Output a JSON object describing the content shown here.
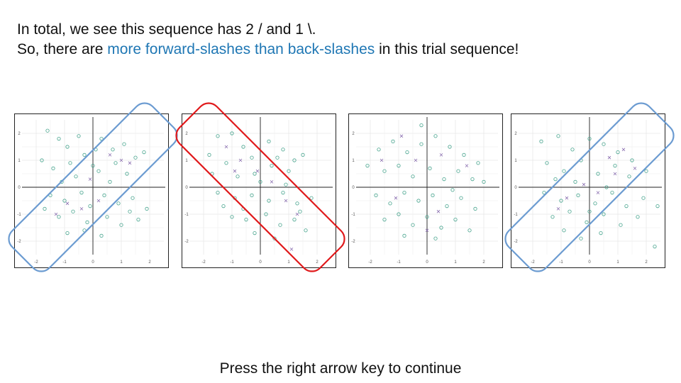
{
  "text": {
    "line1": "In total, we see this sequence has 2 / and 1 \\.",
    "line2_prefix": "So, there are ",
    "line2_highlight": "more forward-slashes than back-slashes",
    "line2_suffix": " in this trial sequence!",
    "footer": "Press the right arrow key to continue"
  },
  "colors": {
    "highlight_text": "#1f77b4",
    "forward_box": "#6b9bd1",
    "back_box": "#e0191b",
    "circle_points": "#45a38c",
    "cross_points": "#8a6fb0",
    "axis": "#222222",
    "grid": "#e8e8e8"
  },
  "chart_data": [
    {
      "type": "scatter",
      "panel": 1,
      "annotation": "forward-slash",
      "xlim": [
        -2.5,
        2.5
      ],
      "ylim": [
        -2.5,
        2.5
      ],
      "xticks": [
        "-2",
        "-1",
        "0",
        "1",
        "2"
      ],
      "yticks": [
        "2",
        "1",
        "0",
        "-1",
        "-2"
      ],
      "grid": true,
      "series": [
        {
          "marker": "circle",
          "points": [
            [
              -1.6,
              2.1
            ],
            [
              -1.2,
              1.8
            ],
            [
              -0.9,
              1.5
            ],
            [
              -0.5,
              1.9
            ],
            [
              -1.8,
              1.0
            ],
            [
              -1.4,
              0.7
            ],
            [
              -0.8,
              0.9
            ],
            [
              -0.3,
              1.2
            ],
            [
              0.3,
              1.8
            ],
            [
              0.7,
              1.4
            ],
            [
              1.1,
              1.6
            ],
            [
              1.5,
              1.1
            ],
            [
              -0.6,
              0.4
            ],
            [
              0.2,
              0.6
            ],
            [
              0.8,
              0.9
            ],
            [
              1.2,
              0.5
            ],
            [
              1.8,
              1.3
            ],
            [
              -1.5,
              -0.3
            ],
            [
              -1.0,
              -0.5
            ],
            [
              -0.4,
              -0.2
            ],
            [
              0.4,
              -0.3
            ],
            [
              0.9,
              -0.6
            ],
            [
              1.4,
              -0.4
            ],
            [
              1.9,
              -0.8
            ],
            [
              -1.2,
              -1.1
            ],
            [
              -0.7,
              -0.9
            ],
            [
              -0.2,
              -1.3
            ],
            [
              0.5,
              -1.1
            ],
            [
              1.0,
              -1.4
            ],
            [
              1.6,
              -1.2
            ],
            [
              -0.9,
              -1.7
            ],
            [
              -0.3,
              -1.6
            ],
            [
              0.3,
              -1.8
            ],
            [
              -1.7,
              -0.8
            ],
            [
              0.1,
              1.4
            ],
            [
              0.6,
              0.2
            ],
            [
              -0.1,
              -0.7
            ],
            [
              1.3,
              -0.9
            ],
            [
              -1.1,
              0.2
            ],
            [
              0.0,
              0.8
            ]
          ]
        },
        {
          "marker": "cross",
          "points": [
            [
              0.6,
              1.2
            ],
            [
              1.0,
              1.0
            ],
            [
              -0.4,
              -0.8
            ],
            [
              -0.9,
              -0.6
            ],
            [
              0.2,
              -0.5
            ],
            [
              1.3,
              0.9
            ],
            [
              -1.3,
              -1.0
            ],
            [
              -0.1,
              0.3
            ]
          ]
        }
      ]
    },
    {
      "type": "scatter",
      "panel": 2,
      "annotation": "back-slash",
      "xlim": [
        -2.5,
        2.5
      ],
      "ylim": [
        -2.5,
        2.5
      ],
      "xticks": [
        "-2",
        "-1",
        "0",
        "1",
        "2"
      ],
      "yticks": [
        "2",
        "1",
        "0",
        "-1",
        "-2"
      ],
      "grid": true,
      "series": [
        {
          "marker": "circle",
          "points": [
            [
              -1.5,
              1.9
            ],
            [
              -1.0,
              2.0
            ],
            [
              -0.6,
              1.5
            ],
            [
              -1.8,
              1.2
            ],
            [
              -1.2,
              0.9
            ],
            [
              -0.3,
              1.1
            ],
            [
              0.3,
              1.7
            ],
            [
              0.8,
              1.4
            ],
            [
              1.2,
              1.0
            ],
            [
              -0.8,
              0.4
            ],
            [
              -0.2,
              0.5
            ],
            [
              0.4,
              0.8
            ],
            [
              1.0,
              0.6
            ],
            [
              1.5,
              1.2
            ],
            [
              -1.5,
              -0.2
            ],
            [
              -0.9,
              -0.4
            ],
            [
              -0.3,
              -0.3
            ],
            [
              0.3,
              -0.5
            ],
            [
              0.8,
              -0.2
            ],
            [
              1.3,
              -0.6
            ],
            [
              1.8,
              -0.4
            ],
            [
              -1.0,
              -1.1
            ],
            [
              -0.5,
              -1.2
            ],
            [
              0.2,
              -1.0
            ],
            [
              0.7,
              -1.4
            ],
            [
              1.2,
              -1.2
            ],
            [
              1.6,
              -1.6
            ],
            [
              -0.2,
              -1.7
            ],
            [
              0.5,
              -1.9
            ],
            [
              -1.3,
              -0.7
            ],
            [
              0.0,
              0.2
            ],
            [
              0.9,
              0.1
            ],
            [
              -0.6,
              -0.8
            ],
            [
              1.4,
              -0.9
            ],
            [
              -1.7,
              0.5
            ],
            [
              0.6,
              1.1
            ]
          ]
        },
        {
          "marker": "cross",
          "points": [
            [
              -1.2,
              1.5
            ],
            [
              -0.7,
              1.0
            ],
            [
              -0.1,
              0.6
            ],
            [
              0.4,
              0.2
            ],
            [
              0.9,
              -0.5
            ],
            [
              1.3,
              -1.0
            ],
            [
              -0.9,
              0.6
            ],
            [
              1.1,
              -2.3
            ]
          ]
        }
      ]
    },
    {
      "type": "scatter",
      "panel": 3,
      "annotation": "none",
      "xlim": [
        -2.5,
        2.5
      ],
      "ylim": [
        -2.5,
        2.5
      ],
      "xticks": [
        "-2",
        "-1",
        "0",
        "1",
        "2"
      ],
      "yticks": [
        "2",
        "1",
        "0",
        "-1",
        "-2"
      ],
      "grid": true,
      "series": [
        {
          "marker": "circle",
          "points": [
            [
              -1.7,
              1.4
            ],
            [
              -1.2,
              1.7
            ],
            [
              -0.7,
              1.3
            ],
            [
              -0.2,
              1.6
            ],
            [
              0.3,
              1.9
            ],
            [
              0.8,
              1.5
            ],
            [
              1.3,
              1.2
            ],
            [
              1.8,
              0.9
            ],
            [
              -1.5,
              0.6
            ],
            [
              -1.0,
              0.8
            ],
            [
              -0.5,
              0.4
            ],
            [
              0.1,
              0.7
            ],
            [
              0.6,
              0.3
            ],
            [
              1.1,
              0.6
            ],
            [
              1.6,
              0.3
            ],
            [
              -1.8,
              -0.3
            ],
            [
              -1.3,
              -0.6
            ],
            [
              -0.8,
              -0.2
            ],
            [
              -0.3,
              -0.5
            ],
            [
              0.2,
              -0.3
            ],
            [
              0.7,
              -0.7
            ],
            [
              1.2,
              -0.4
            ],
            [
              1.7,
              -0.8
            ],
            [
              -1.5,
              -1.2
            ],
            [
              -1.0,
              -1.0
            ],
            [
              -0.5,
              -1.4
            ],
            [
              0.0,
              -1.1
            ],
            [
              0.5,
              -1.5
            ],
            [
              1.0,
              -1.2
            ],
            [
              1.5,
              -1.6
            ],
            [
              -0.8,
              -1.8
            ],
            [
              0.3,
              -1.9
            ],
            [
              -0.2,
              2.3
            ],
            [
              2.0,
              0.2
            ],
            [
              -2.1,
              0.8
            ],
            [
              0.9,
              -0.1
            ]
          ]
        },
        {
          "marker": "cross",
          "points": [
            [
              -0.4,
              1.0
            ],
            [
              0.5,
              1.2
            ],
            [
              -1.1,
              -0.4
            ],
            [
              0.4,
              -0.9
            ],
            [
              1.4,
              0.8
            ],
            [
              -0.9,
              1.9
            ],
            [
              0.0,
              -1.6
            ],
            [
              -1.6,
              1.0
            ]
          ]
        }
      ]
    },
    {
      "type": "scatter",
      "panel": 4,
      "annotation": "forward-slash",
      "xlim": [
        -2.5,
        2.5
      ],
      "ylim": [
        -2.5,
        2.5
      ],
      "xticks": [
        "-2",
        "-1",
        "0",
        "1",
        "2"
      ],
      "yticks": [
        "2",
        "1",
        "0",
        "-1",
        "-2"
      ],
      "grid": true,
      "series": [
        {
          "marker": "circle",
          "points": [
            [
              -1.7,
              1.7
            ],
            [
              -1.1,
              1.9
            ],
            [
              -0.6,
              1.4
            ],
            [
              0.0,
              1.8
            ],
            [
              0.5,
              1.6
            ],
            [
              1.0,
              1.3
            ],
            [
              1.5,
              1.0
            ],
            [
              -1.5,
              0.9
            ],
            [
              -0.9,
              0.6
            ],
            [
              -0.3,
              1.0
            ],
            [
              0.3,
              0.5
            ],
            [
              0.9,
              0.8
            ],
            [
              1.4,
              0.4
            ],
            [
              2.0,
              0.6
            ],
            [
              -1.6,
              -0.2
            ],
            [
              -1.0,
              -0.5
            ],
            [
              -0.4,
              -0.3
            ],
            [
              0.2,
              -0.6
            ],
            [
              0.8,
              -0.2
            ],
            [
              1.3,
              -0.7
            ],
            [
              1.9,
              -0.4
            ],
            [
              -1.3,
              -1.1
            ],
            [
              -0.7,
              -0.9
            ],
            [
              -0.1,
              -1.3
            ],
            [
              0.5,
              -1.0
            ],
            [
              1.1,
              -1.4
            ],
            [
              -0.9,
              -1.6
            ],
            [
              -0.3,
              -1.9
            ],
            [
              0.4,
              -1.7
            ],
            [
              2.4,
              -0.7
            ],
            [
              2.3,
              -2.2
            ],
            [
              -0.5,
              0.2
            ],
            [
              0.6,
              0.0
            ],
            [
              -1.2,
              0.3
            ],
            [
              1.7,
              -1.1
            ],
            [
              0.0,
              -0.9
            ]
          ]
        },
        {
          "marker": "cross",
          "points": [
            [
              0.7,
              1.1
            ],
            [
              1.2,
              1.4
            ],
            [
              -0.2,
              0.1
            ],
            [
              -0.8,
              -0.4
            ],
            [
              0.3,
              -0.2
            ],
            [
              1.6,
              0.7
            ],
            [
              -1.1,
              -0.8
            ],
            [
              0.9,
              0.5
            ]
          ]
        }
      ]
    }
  ]
}
